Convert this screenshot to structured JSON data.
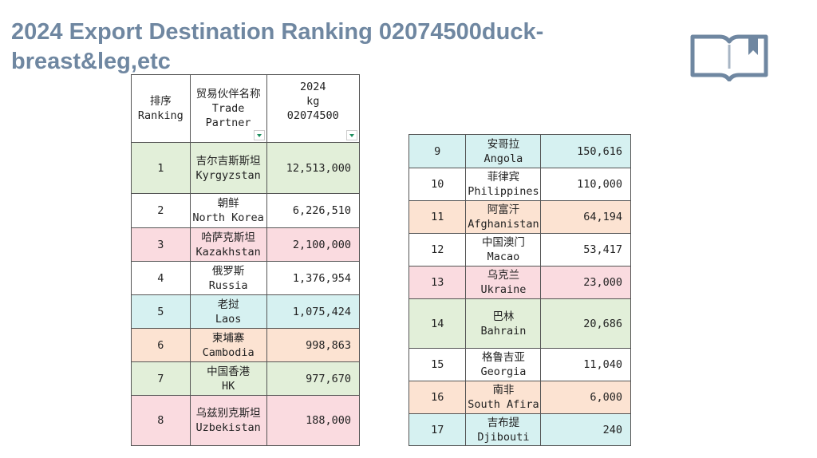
{
  "title": "2024 Export Destination Ranking 02074500duck-breast&leg,etc",
  "icon": "open-book-icon",
  "colors": {
    "green": "#e2efd9",
    "pink": "#fadbe0",
    "blue": "#d6f1f1",
    "orange": "#fce3d2",
    "white": "#ffffff",
    "title": "#6f87a1"
  },
  "header": {
    "ranking_cn": "排序",
    "ranking_en": "Ranking",
    "partner_cn": "贸易伙伴名称",
    "partner_en": "Trade Partner",
    "year": "2024",
    "unit": "kg",
    "code": "02074500"
  },
  "rows": [
    {
      "rank": "1",
      "cn": "吉尔吉斯斯坦",
      "en": "Kyrgyzstan",
      "value": "12,513,000",
      "color": "green"
    },
    {
      "rank": "2",
      "cn": "朝鲜",
      "en": "North Korea",
      "value": "6,226,510",
      "color": "white"
    },
    {
      "rank": "3",
      "cn": "哈萨克斯坦",
      "en": "Kazakhstan",
      "value": "2,100,000",
      "color": "pink"
    },
    {
      "rank": "4",
      "cn": "俄罗斯",
      "en": "Russia",
      "value": "1,376,954",
      "color": "white"
    },
    {
      "rank": "5",
      "cn": "老挝",
      "en": "Laos",
      "value": "1,075,424",
      "color": "blue"
    },
    {
      "rank": "6",
      "cn": "柬埔寨",
      "en": "Cambodia",
      "value": "998,863",
      "color": "orange"
    },
    {
      "rank": "7",
      "cn": "中国香港",
      "en": "HK",
      "value": "977,670",
      "color": "green"
    },
    {
      "rank": "8",
      "cn": "乌兹别克斯坦",
      "en": "Uzbekistan",
      "value": "188,000",
      "color": "pink"
    },
    {
      "rank": "9",
      "cn": "安哥拉",
      "en": "Angola",
      "value": "150,616",
      "color": "blue"
    },
    {
      "rank": "10",
      "cn": "菲律宾",
      "en": "Philippines",
      "value": "110,000",
      "color": "white"
    },
    {
      "rank": "11",
      "cn": "阿富汗",
      "en": "Afghanistan",
      "value": "64,194",
      "color": "orange"
    },
    {
      "rank": "12",
      "cn": "中国澳门",
      "en": "Macao",
      "value": "53,417",
      "color": "white"
    },
    {
      "rank": "13",
      "cn": "乌克兰",
      "en": "Ukraine",
      "value": "23,000",
      "color": "pink"
    },
    {
      "rank": "14",
      "cn": "巴林",
      "en": "Bahrain",
      "value": "20,686",
      "color": "green"
    },
    {
      "rank": "15",
      "cn": "格鲁吉亚",
      "en": "Georgia",
      "value": "11,040",
      "color": "white"
    },
    {
      "rank": "16",
      "cn": "南非",
      "en": "South Afira",
      "value": "6,000",
      "color": "orange"
    },
    {
      "rank": "17",
      "cn": "吉布提",
      "en": "Djibouti",
      "value": "240",
      "color": "blue"
    }
  ]
}
